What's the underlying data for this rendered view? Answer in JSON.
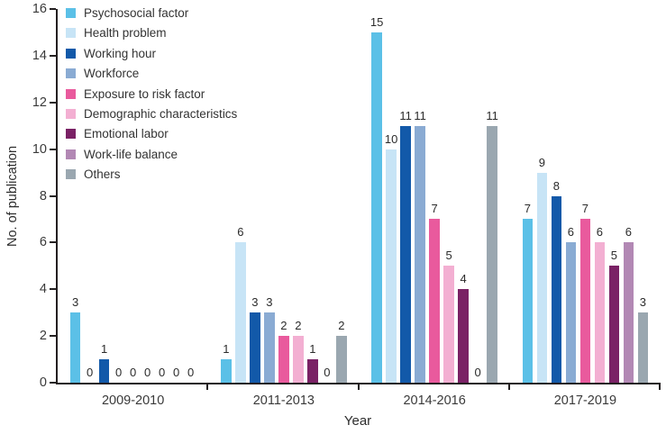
{
  "chart_data": {
    "type": "bar",
    "title": "",
    "xlabel": "Year",
    "ylabel": "No. of publication",
    "ylim": [
      0,
      16
    ],
    "yticks": [
      0,
      2,
      4,
      6,
      8,
      10,
      12,
      14,
      16
    ],
    "grid": false,
    "legend_position": "top-left-inside",
    "categories": [
      "2009-2010",
      "2011-2013",
      "2014-2016",
      "2017-2019"
    ],
    "series": [
      {
        "name": "Psychosocial factor",
        "color": "#5bc0e7",
        "values": [
          3,
          1,
          15,
          7
        ]
      },
      {
        "name": "Health problem",
        "color": "#c7e4f6",
        "values": [
          0,
          6,
          10,
          9
        ]
      },
      {
        "name": "Working hour",
        "color": "#1259a9",
        "values": [
          1,
          3,
          11,
          8
        ]
      },
      {
        "name": "Workforce",
        "color": "#8aabd3",
        "values": [
          0,
          3,
          11,
          6
        ]
      },
      {
        "name": "Exposure to risk factor",
        "color": "#e95a9d",
        "values": [
          0,
          2,
          7,
          7
        ]
      },
      {
        "name": "Demographic characteristics",
        "color": "#f3afd2",
        "values": [
          0,
          2,
          5,
          6
        ]
      },
      {
        "name": "Emotional labor",
        "color": "#7a2165",
        "values": [
          0,
          1,
          4,
          5
        ]
      },
      {
        "name": "Work-life balance",
        "color": "#b288b4",
        "values": [
          0,
          0,
          0,
          6
        ]
      },
      {
        "name": "Others",
        "color": "#9aa7b0",
        "values": [
          0,
          2,
          11,
          3
        ]
      }
    ],
    "axis_color": "#231f20"
  }
}
